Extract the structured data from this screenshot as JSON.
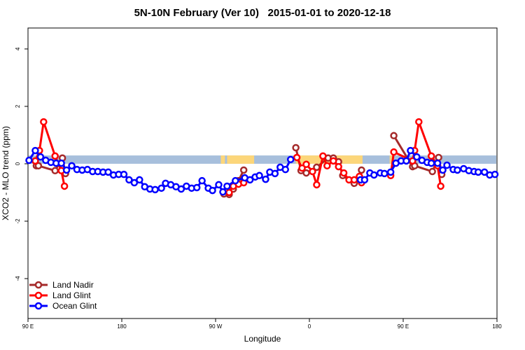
{
  "chart_data": {
    "type": "line",
    "title": "5N-10N February (Ver 10)   2015-01-01 to 2020-12-18",
    "xlabel": "Longitude",
    "ylabel": "XCO2 - MLO trend (ppm)",
    "xlim": [
      90,
      540
    ],
    "ylim": [
      -5.39,
      4.73
    ],
    "xticks": [
      90,
      180,
      270,
      360,
      450,
      540
    ],
    "xtick_labels": [
      "90 E",
      "180",
      "90 W",
      "0",
      "90 E",
      "180"
    ],
    "yticks": [
      -4,
      -2,
      0,
      2,
      4
    ],
    "ytick_labels": [
      "-4",
      "-2",
      "0",
      "2",
      "4"
    ],
    "legend_position": "bottom-left",
    "background_band": {
      "ymin": 0,
      "ymax": 0.29,
      "ocean_color": "#a7bfdc",
      "land_color": "#fcd67a",
      "land_ranges": [
        [
          275,
          279
        ],
        [
          281,
          307
        ],
        [
          347,
          411
        ],
        [
          437,
          440
        ]
      ]
    },
    "series": [
      {
        "name": "Land Nadir",
        "color": "#a52a2a",
        "x": [
          98,
          100,
          116,
          123,
          126,
          null,
          278,
          283,
          287,
          292,
          297,
          null,
          347,
          352,
          357,
          367,
          378,
          383,
          388,
          392,
          403,
          410,
          null,
          441,
          459,
          461,
          478,
          484,
          487
        ],
        "y": [
          -0.07,
          -0.07,
          -0.24,
          0.2,
          -0.34,
          null,
          -1.05,
          -1.07,
          -0.88,
          -0.59,
          -0.22,
          null,
          0.56,
          -0.24,
          -0.32,
          -0.12,
          0.2,
          0.2,
          0.07,
          -0.41,
          -0.68,
          -0.22,
          null,
          0.98,
          -0.1,
          -0.07,
          -0.27,
          0.22,
          -0.37
        ]
      },
      {
        "name": "Land Glint",
        "color": "#ff0000",
        "x": [
          97,
          101,
          105,
          116,
          122,
          125,
          null,
          283,
          287,
          292,
          297,
          null,
          348,
          353,
          357,
          363,
          367,
          373,
          377,
          383,
          388,
          393,
          398,
          403,
          408,
          410,
          null,
          438,
          441,
          459,
          461,
          465,
          477,
          483,
          486
        ],
        "y": [
          0.1,
          0.46,
          1.46,
          0.27,
          -0.24,
          -0.78,
          null,
          -1.0,
          -0.78,
          -0.71,
          -0.66,
          null,
          0.22,
          -0.15,
          -0.02,
          -0.27,
          -0.73,
          0.27,
          -0.07,
          0.1,
          -0.1,
          -0.32,
          -0.56,
          -0.56,
          -0.44,
          -0.66,
          null,
          -0.41,
          0.41,
          0.1,
          0.46,
          1.46,
          0.27,
          -0.07,
          -0.78
        ]
      },
      {
        "name": "Ocean Glint",
        "color": "#0000ff",
        "x": [
          91,
          97,
          102,
          107,
          112,
          117,
          122,
          127,
          132,
          137,
          142,
          147,
          152,
          157,
          162,
          167,
          172,
          177,
          182,
          187,
          192,
          197,
          202,
          207,
          212,
          218,
          222,
          227,
          232,
          237,
          242,
          247,
          252,
          257,
          263,
          267,
          273,
          277,
          281,
          289,
          298,
          303,
          308,
          312,
          318,
          322,
          327,
          332,
          337,
          342,
          null,
          409,
          413,
          418,
          422,
          428,
          432,
          438,
          443,
          448,
          453,
          457,
          463,
          468,
          473,
          477,
          483,
          488,
          492,
          498,
          502,
          508,
          513,
          518,
          522,
          528,
          533,
          538
        ],
        "y": [
          0.12,
          0.46,
          0.24,
          0.12,
          0.05,
          0.02,
          0.02,
          -0.22,
          -0.07,
          -0.2,
          -0.22,
          -0.2,
          -0.27,
          -0.27,
          -0.29,
          -0.29,
          -0.39,
          -0.37,
          -0.37,
          -0.56,
          -0.66,
          -0.56,
          -0.8,
          -0.88,
          -0.9,
          -0.85,
          -0.68,
          -0.73,
          -0.8,
          -0.88,
          -0.78,
          -0.85,
          -0.83,
          -0.59,
          -0.85,
          -0.93,
          -0.73,
          -0.98,
          -0.78,
          -0.59,
          -0.49,
          -0.56,
          -0.46,
          -0.41,
          -0.54,
          -0.29,
          -0.34,
          -0.12,
          -0.2,
          0.15,
          null,
          -0.56,
          -0.56,
          -0.32,
          -0.39,
          -0.32,
          -0.34,
          -0.29,
          0.02,
          0.1,
          0.1,
          0.46,
          0.24,
          0.12,
          0.05,
          0.02,
          0.02,
          -0.22,
          -0.05,
          -0.2,
          -0.22,
          -0.17,
          -0.24,
          -0.27,
          -0.29,
          -0.29,
          -0.39,
          -0.37
        ]
      }
    ]
  }
}
